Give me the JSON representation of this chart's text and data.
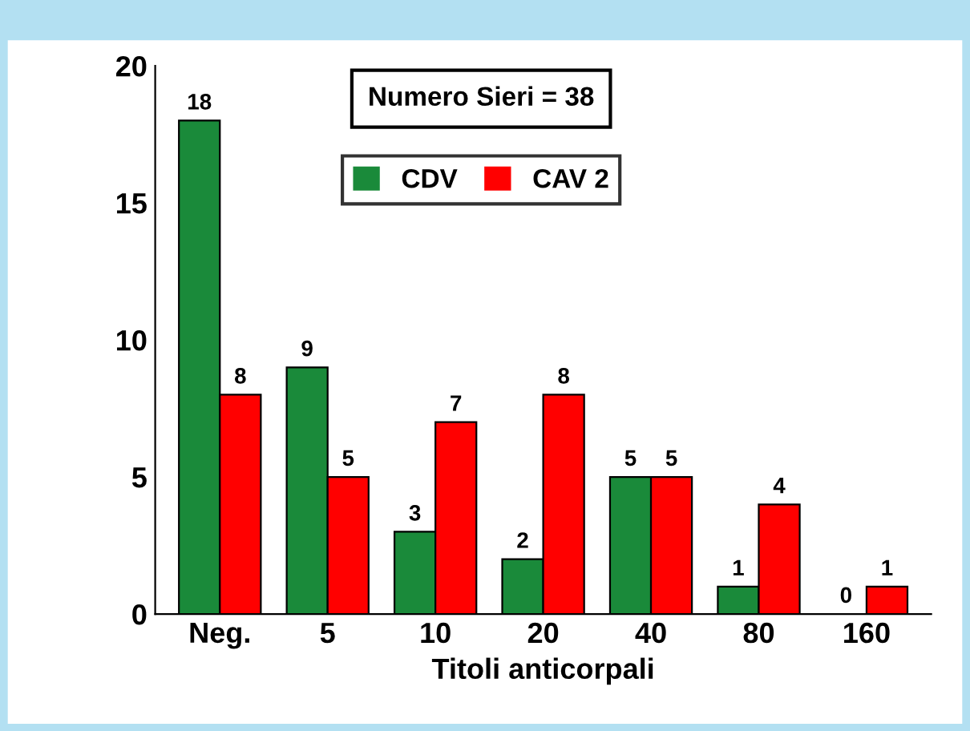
{
  "chart_data": {
    "type": "bar",
    "xlabel": "Titoli anticorpali",
    "categories": [
      "Neg.",
      "5",
      "10",
      "20",
      "40",
      "80",
      "160"
    ],
    "series": [
      {
        "name": "CDV",
        "color": "#1a8a3a",
        "values": [
          18,
          9,
          3,
          2,
          5,
          1,
          0
        ]
      },
      {
        "name": "CAV 2",
        "color": "#ff0000",
        "values": [
          8,
          5,
          7,
          8,
          5,
          4,
          1
        ]
      }
    ],
    "ylim": [
      0,
      20
    ],
    "yticks": [
      0,
      5,
      10,
      15,
      20
    ],
    "data_labels": true,
    "legend": "top",
    "grid": false,
    "annotations": [
      "Numero Sieri = 38"
    ]
  }
}
